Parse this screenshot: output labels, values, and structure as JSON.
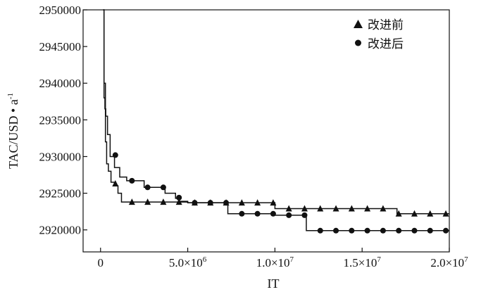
{
  "chart_data": {
    "type": "line",
    "xlabel": "IT",
    "ylabel": "TAC/USD • a",
    "ylabel_superscript": "-1",
    "xlim": [
      -1000000,
      20000000
    ],
    "ylim": [
      2917000,
      2950000
    ],
    "x_ticks": [
      {
        "value": 0,
        "label": "0"
      },
      {
        "value": 5000000,
        "label": "5.0×10",
        "exp": "6"
      },
      {
        "value": 10000000,
        "label": "1.0×10",
        "exp": "7"
      },
      {
        "value": 15000000,
        "label": "1.5×10",
        "exp": "7"
      },
      {
        "value": 20000000,
        "label": "2.0×10",
        "exp": "7"
      }
    ],
    "y_ticks": [
      {
        "value": 2920000,
        "label": "2920000"
      },
      {
        "value": 2925000,
        "label": "2925000"
      },
      {
        "value": 2930000,
        "label": "2930000"
      },
      {
        "value": 2935000,
        "label": "2935000"
      },
      {
        "value": 2940000,
        "label": "2940000"
      },
      {
        "value": 2945000,
        "label": "2945000"
      },
      {
        "value": 2950000,
        "label": "2950000"
      }
    ],
    "legend_position": "top-right",
    "series": [
      {
        "name": "改进前",
        "marker": "triangle",
        "step_x": [
          150000,
          200000,
          280000,
          350000,
          450000,
          600000,
          800000,
          1000000,
          1200000,
          5000000,
          7500000,
          10000000,
          17000000,
          20000000
        ],
        "step_y": [
          2950000,
          2940000,
          2932000,
          2929000,
          2928000,
          2926500,
          2926000,
          2925000,
          2923800,
          2923700,
          2923700,
          2922900,
          2922200,
          2922200
        ],
        "markers_x": [
          850000,
          1800000,
          2700000,
          3600000,
          4500000,
          5400000,
          6300000,
          7200000,
          8100000,
          9000000,
          9900000,
          10800000,
          11700000,
          12600000,
          13500000,
          14400000,
          15300000,
          16200000,
          17100000,
          18000000,
          18900000,
          19800000
        ],
        "markers_y": [
          2926300,
          2923800,
          2923800,
          2923800,
          2923800,
          2923700,
          2923700,
          2923700,
          2923700,
          2923700,
          2923700,
          2922900,
          2922900,
          2922900,
          2922900,
          2922900,
          2922900,
          2922900,
          2922200,
          2922200,
          2922200,
          2922200
        ]
      },
      {
        "name": "改进后",
        "marker": "circle",
        "step_x": [
          150000,
          200000,
          250000,
          300000,
          400000,
          550000,
          800000,
          1100000,
          1500000,
          2500000,
          3700000,
          4300000,
          4500000,
          5000000,
          7300000,
          10000000,
          11800000,
          20000000
        ],
        "step_y": [
          2950000,
          2938000,
          2936500,
          2935500,
          2933000,
          2930000,
          2928500,
          2927200,
          2926700,
          2925800,
          2925000,
          2924300,
          2923900,
          2923700,
          2922200,
          2922000,
          2919900,
          2919900
        ],
        "markers_x": [
          850000,
          1800000,
          2700000,
          3600000,
          4500000,
          5400000,
          6300000,
          7200000,
          8100000,
          9000000,
          9900000,
          10800000,
          11700000,
          12600000,
          13500000,
          14400000,
          15300000,
          16200000,
          17100000,
          18000000,
          18900000,
          19800000
        ],
        "markers_y": [
          2930200,
          2926700,
          2925800,
          2925800,
          2924400,
          2923700,
          2923700,
          2923700,
          2922200,
          2922200,
          2922200,
          2922000,
          2922000,
          2919900,
          2919900,
          2919900,
          2919900,
          2919900,
          2919900,
          2919900,
          2919900,
          2919900
        ]
      }
    ]
  }
}
